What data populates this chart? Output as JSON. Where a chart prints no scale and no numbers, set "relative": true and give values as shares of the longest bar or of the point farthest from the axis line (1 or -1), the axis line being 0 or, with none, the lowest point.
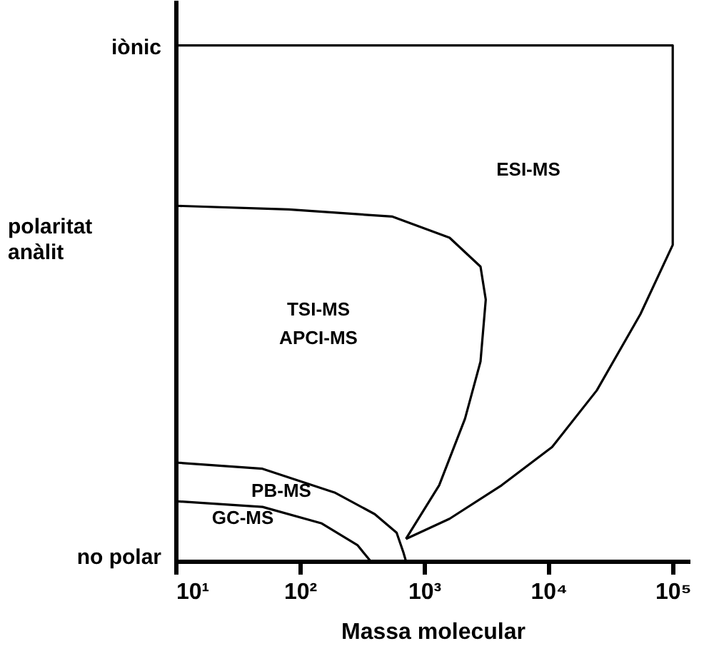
{
  "chart_data": {
    "type": "line",
    "xlabel": "Massa molecular",
    "ylabel": "polaritat anàlit",
    "log": "x",
    "xlim": [
      10,
      137000
    ],
    "relative": true,
    "xticks": [
      {
        "value": 10,
        "label": "10¹"
      },
      {
        "value": 100,
        "label": "10²"
      },
      {
        "value": 1000,
        "label": "10³"
      },
      {
        "value": 10000,
        "label": "10⁴"
      },
      {
        "value": 100000,
        "label": "10⁵"
      }
    ],
    "grid": false,
    "marker": "none",
    "line_style": "solid",
    "series": [
      {
        "color": "#000000",
        "x": [
          10,
          100000,
          100000,
          55000,
          24500,
          10700,
          4200,
          1600,
          713
        ],
        "values": [
          1,
          1,
          0.613,
          0.479,
          0.331,
          0.221,
          0.147,
          0.082,
          0.043
        ]
      },
      {
        "color": "#000000",
        "x": [
          10,
          81,
          556,
          1600,
          2840,
          3130,
          2840,
          2130,
          1320,
          713
        ],
        "values": [
          0.689,
          0.682,
          0.668,
          0.627,
          0.571,
          0.507,
          0.387,
          0.276,
          0.147,
          0.043
        ]
      },
      {
        "color": "#000000",
        "x": [
          10,
          50,
          190,
          400,
          600,
          680,
          713
        ],
        "values": [
          0.191,
          0.179,
          0.133,
          0.091,
          0.055,
          0.017,
          0
        ]
      },
      {
        "color": "#000000",
        "x": [
          10,
          50,
          150,
          290,
          370
        ],
        "values": [
          0.116,
          0.105,
          0.073,
          0.031,
          0
        ]
      }
    ],
    "annotations": [
      "iònic",
      "no polar",
      "ESI-MS",
      "TSI-MS",
      "APCI-MS",
      "PB-MS",
      "GC-MS"
    ]
  }
}
